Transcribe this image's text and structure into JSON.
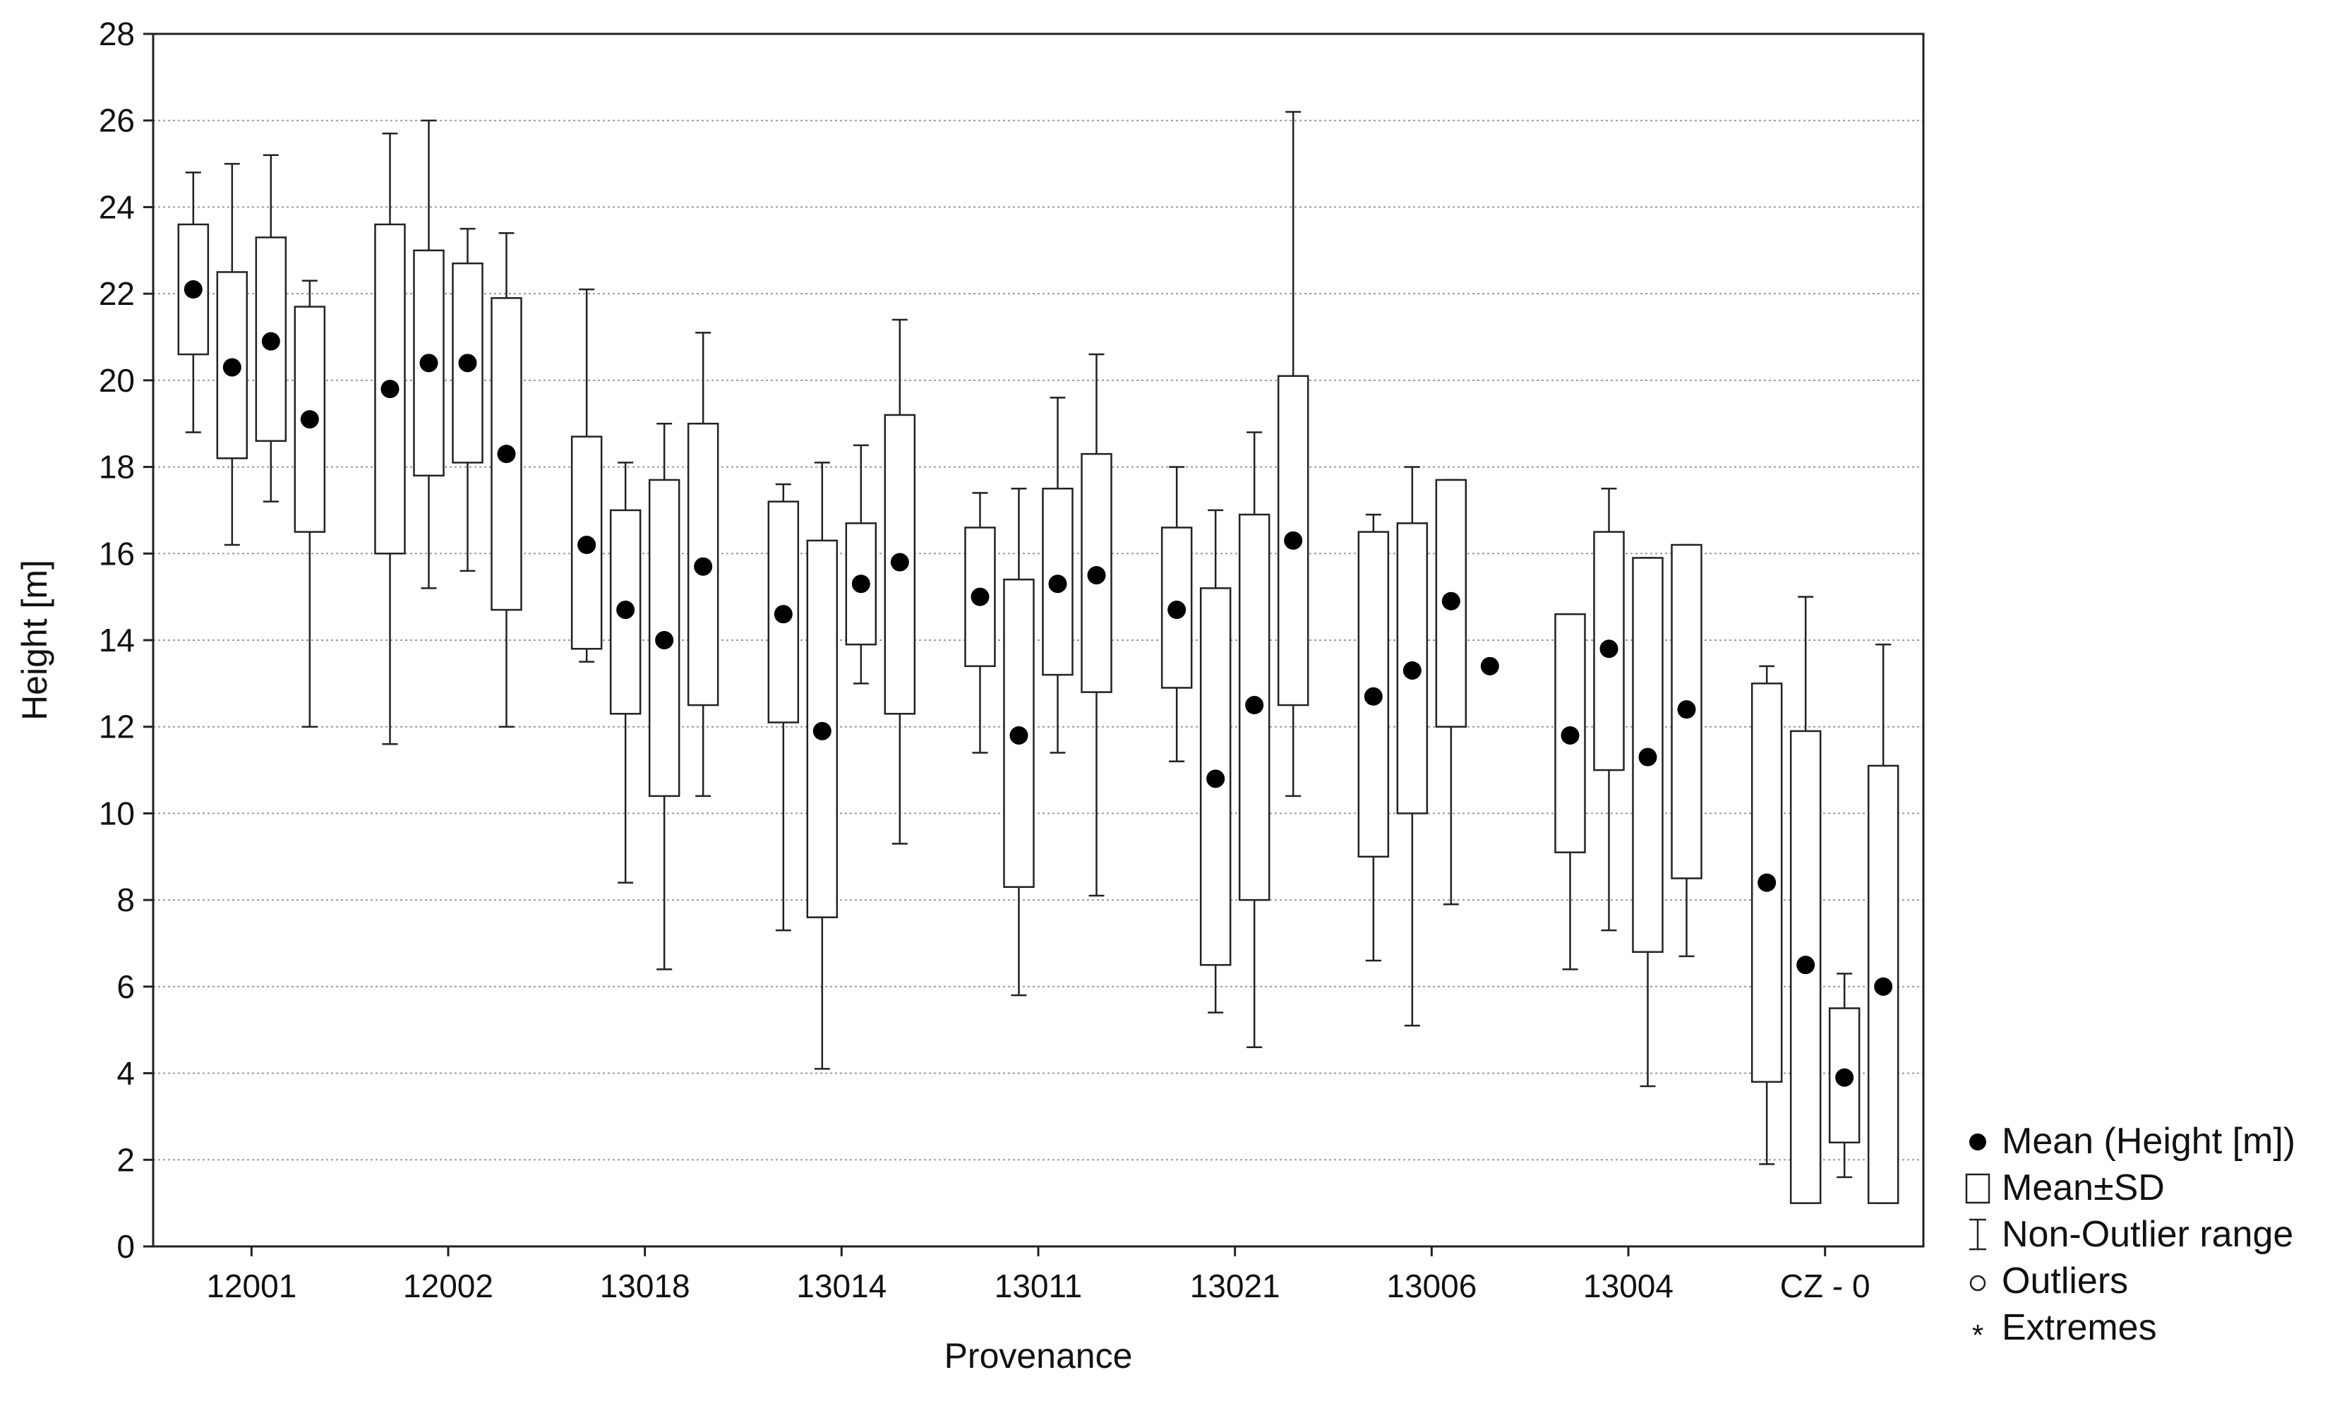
{
  "chart_data": {
    "type": "box",
    "xlabel": "Provenance",
    "ylabel": "Height [m]",
    "ylim": [
      0,
      28
    ],
    "yticks": [
      0,
      2,
      4,
      6,
      8,
      10,
      12,
      14,
      16,
      18,
      20,
      22,
      24,
      26,
      28
    ],
    "grid": "horizontal dotted",
    "legend_position": "bottom-right outside",
    "categories": [
      "12001",
      "12002",
      "13018",
      "13014",
      "13011",
      "13021",
      "13006",
      "13004",
      "CZ - 0"
    ],
    "boxes_per_category": 4,
    "boxes": [
      {
        "category": "12001",
        "mean": 22.1,
        "sd_low": 20.6,
        "sd_high": 23.6,
        "min": 18.8,
        "max": 24.8
      },
      {
        "category": "12001",
        "mean": 20.3,
        "sd_low": 18.2,
        "sd_high": 22.5,
        "min": 16.2,
        "max": 25.0
      },
      {
        "category": "12001",
        "mean": 20.9,
        "sd_low": 18.6,
        "sd_high": 23.3,
        "min": 17.2,
        "max": 25.2
      },
      {
        "category": "12001",
        "mean": 19.1,
        "sd_low": 16.5,
        "sd_high": 21.7,
        "min": 12.0,
        "max": 22.3
      },
      {
        "category": "12002",
        "mean": 19.8,
        "sd_low": 16.0,
        "sd_high": 23.6,
        "min": 11.6,
        "max": 25.7
      },
      {
        "category": "12002",
        "mean": 20.4,
        "sd_low": 17.8,
        "sd_high": 23.0,
        "min": 15.2,
        "max": 26.0
      },
      {
        "category": "12002",
        "mean": 20.4,
        "sd_low": 18.1,
        "sd_high": 22.7,
        "min": 15.6,
        "max": 23.5
      },
      {
        "category": "12002",
        "mean": 18.3,
        "sd_low": 14.7,
        "sd_high": 21.9,
        "min": 12.0,
        "max": 23.4
      },
      {
        "category": "13018",
        "mean": 16.2,
        "sd_low": 13.8,
        "sd_high": 18.7,
        "min": 13.5,
        "max": 22.1
      },
      {
        "category": "13018",
        "mean": 14.7,
        "sd_low": 12.3,
        "sd_high": 17.0,
        "min": 8.4,
        "max": 18.1
      },
      {
        "category": "13018",
        "mean": 14.0,
        "sd_low": 10.4,
        "sd_high": 17.7,
        "min": 6.4,
        "max": 19.0
      },
      {
        "category": "13018",
        "mean": 15.7,
        "sd_low": 12.5,
        "sd_high": 19.0,
        "min": 10.4,
        "max": 21.1
      },
      {
        "category": "13014",
        "mean": 14.6,
        "sd_low": 12.1,
        "sd_high": 17.2,
        "min": 7.3,
        "max": 17.6
      },
      {
        "category": "13014",
        "mean": 11.9,
        "sd_low": 7.6,
        "sd_high": 16.3,
        "min": 4.1,
        "max": 18.1
      },
      {
        "category": "13014",
        "mean": 15.3,
        "sd_low": 13.9,
        "sd_high": 16.7,
        "min": 13.0,
        "max": 18.5
      },
      {
        "category": "13014",
        "mean": 15.8,
        "sd_low": 12.3,
        "sd_high": 19.2,
        "min": 9.3,
        "max": 21.4
      },
      {
        "category": "13011",
        "mean": 15.0,
        "sd_low": 13.4,
        "sd_high": 16.6,
        "min": 11.4,
        "max": 17.4
      },
      {
        "category": "13011",
        "mean": 11.8,
        "sd_low": 8.3,
        "sd_high": 15.4,
        "min": 5.8,
        "max": 17.5
      },
      {
        "category": "13011",
        "mean": 15.3,
        "sd_low": 13.2,
        "sd_high": 17.5,
        "min": 11.4,
        "max": 19.6
      },
      {
        "category": "13011",
        "mean": 15.5,
        "sd_low": 12.8,
        "sd_high": 18.3,
        "min": 8.1,
        "max": 20.6
      },
      {
        "category": "13021",
        "mean": 14.7,
        "sd_low": 12.9,
        "sd_high": 16.6,
        "min": 11.2,
        "max": 18.0
      },
      {
        "category": "13021",
        "mean": 10.8,
        "sd_low": 6.5,
        "sd_high": 15.2,
        "min": 5.4,
        "max": 17.0
      },
      {
        "category": "13021",
        "mean": 12.5,
        "sd_low": 8.0,
        "sd_high": 16.9,
        "min": 4.6,
        "max": 18.8
      },
      {
        "category": "13021",
        "mean": 16.3,
        "sd_low": 12.5,
        "sd_high": 20.1,
        "min": 10.4,
        "max": 26.2
      },
      {
        "category": "13006",
        "mean": 12.7,
        "sd_low": 9.0,
        "sd_high": 16.5,
        "min": 6.6,
        "max": 16.9
      },
      {
        "category": "13006",
        "mean": 13.3,
        "sd_low": 10.0,
        "sd_high": 16.7,
        "min": 5.1,
        "max": 18.0
      },
      {
        "category": "13006",
        "mean": 14.9,
        "sd_low": 12.0,
        "sd_high": 17.7,
        "min": 7.9,
        "max": 17.7
      },
      {
        "category": "13006",
        "mean": 13.4,
        "sd_low": 13.4,
        "sd_high": 13.4,
        "min": 13.4,
        "max": 13.4
      },
      {
        "category": "13004",
        "mean": 11.8,
        "sd_low": 9.1,
        "sd_high": 14.6,
        "min": 6.4,
        "max": 14.6
      },
      {
        "category": "13004",
        "mean": 13.8,
        "sd_low": 11.0,
        "sd_high": 16.5,
        "min": 7.3,
        "max": 17.5
      },
      {
        "category": "13004",
        "mean": 11.3,
        "sd_low": 6.8,
        "sd_high": 15.9,
        "min": 3.7,
        "max": 15.9
      },
      {
        "category": "13004",
        "mean": 12.4,
        "sd_low": 8.5,
        "sd_high": 16.2,
        "min": 6.7,
        "max": 16.2
      },
      {
        "category": "CZ - 0",
        "mean": 8.4,
        "sd_low": 3.8,
        "sd_high": 13.0,
        "min": 1.9,
        "max": 13.4
      },
      {
        "category": "CZ - 0",
        "mean": 6.5,
        "sd_low": 1.0,
        "sd_high": 11.9,
        "min": 1.0,
        "max": 15.0
      },
      {
        "category": "CZ - 0",
        "mean": 3.9,
        "sd_low": 2.4,
        "sd_high": 5.5,
        "min": 1.6,
        "max": 6.3
      },
      {
        "category": "CZ - 0",
        "mean": 6.0,
        "sd_low": 1.0,
        "sd_high": 11.1,
        "min": 1.0,
        "max": 13.9
      }
    ],
    "legend": [
      {
        "symbol": "filled-dot",
        "label": "Mean (Height [m])"
      },
      {
        "symbol": "box",
        "label": "Mean±SD"
      },
      {
        "symbol": "whisker",
        "label": "Non-Outlier range"
      },
      {
        "symbol": "open-circle",
        "label": "Outliers"
      },
      {
        "symbol": "asterisk",
        "label": "Extremes"
      }
    ]
  }
}
